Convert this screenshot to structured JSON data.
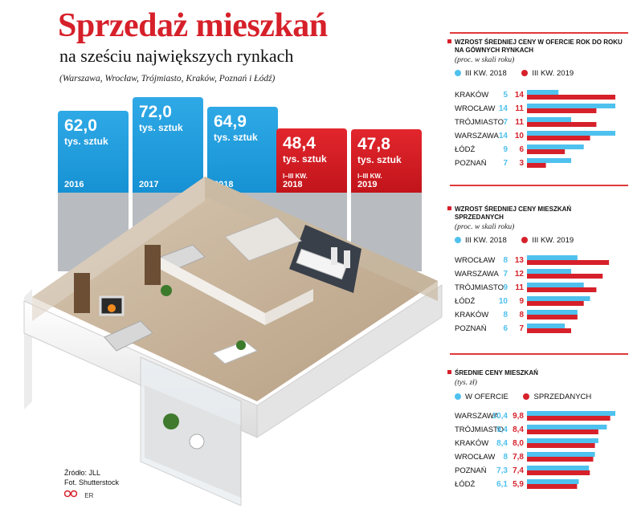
{
  "header": {
    "title": "Sprzedaż mieszkań",
    "subtitle": "na sześciu największych rynkach",
    "cities_note": "(Warszawa, Wrocław, Trójmiasto, Kraków, Poznań i Łódź)"
  },
  "footer": {
    "source": "Źródło: JLL",
    "photo": "Fot. Shutterstock",
    "logo": "ER"
  },
  "colors": {
    "blue": "#1a9ee0",
    "red": "#d6202a",
    "light_blue": "#4fc1ee",
    "gray": "#b8bcc0"
  },
  "chart_data": [
    {
      "type": "bar",
      "id": "sales",
      "categories": [
        "2016",
        "2017",
        "2018",
        "I–III KW. 2018",
        "I–III KW. 2019"
      ],
      "values": [
        62.0,
        72.0,
        64.9,
        48.4,
        47.8
      ],
      "value_labels": [
        "62,0",
        "72,0",
        "64,9",
        "48,4",
        "47,8"
      ],
      "unit": "tys. sztuk",
      "bar_colors": [
        "blue",
        "blue",
        "blue",
        "red",
        "red"
      ]
    },
    {
      "type": "bar",
      "id": "offer_growth",
      "title": "Wzrost średniej ceny w ofercie rok do roku na gównych rynkach",
      "note": "(proc. w skali roku)",
      "categories": [
        "KRAKÓW",
        "WROCŁAW",
        "TRÓJMIASTO",
        "WARSZAWA",
        "ŁÓDŹ",
        "POZNAŃ"
      ],
      "series": [
        {
          "name": "III KW. 2018",
          "color": "light_blue",
          "values": [
            5,
            14,
            7,
            14,
            9,
            7
          ],
          "labels": [
            "5",
            "14",
            "7",
            "14",
            "9",
            "7"
          ]
        },
        {
          "name": "III KW. 2019",
          "color": "red",
          "values": [
            14,
            11,
            11,
            10,
            6,
            3
          ],
          "labels": [
            "14",
            "11",
            "11",
            "10",
            "6",
            "3"
          ]
        }
      ],
      "xlim": [
        0,
        14
      ]
    },
    {
      "type": "bar",
      "id": "sold_growth",
      "title": "Wzrost średniej ceny mieszkań sprzedanych",
      "note": "(proc. w skali roku)",
      "categories": [
        "WROCŁAW",
        "WARSZAWA",
        "TRÓJMIASTO",
        "ŁÓDŹ",
        "KRAKÓW",
        "POZNAŃ"
      ],
      "series": [
        {
          "name": "III KW. 2018",
          "color": "light_blue",
          "values": [
            8,
            7,
            9,
            10,
            8,
            6
          ],
          "labels": [
            "8",
            "7",
            "9",
            "10",
            "8",
            "6"
          ]
        },
        {
          "name": "III KW. 2019",
          "color": "red",
          "values": [
            13,
            12,
            11,
            9,
            8,
            7
          ],
          "labels": [
            "13",
            "12",
            "11",
            "9",
            "8",
            "7"
          ]
        }
      ],
      "xlim": [
        0,
        14
      ]
    },
    {
      "type": "bar",
      "id": "avg_prices",
      "title": "Średnie ceny mieszkań",
      "note": "(tys. zł)",
      "categories": [
        "WARSZAWA",
        "TRÓJMIASTO",
        "KRAKÓW",
        "WROCŁAW",
        "POZNAŃ",
        "ŁÓDŹ"
      ],
      "series": [
        {
          "name": "W OFERCIE",
          "color": "light_blue",
          "values": [
            10.4,
            9.4,
            8.4,
            8,
            7.3,
            6.1
          ],
          "labels": [
            "10,4",
            "9,4",
            "8,4",
            "8",
            "7,3",
            "6,1"
          ]
        },
        {
          "name": "SPRZEDANYCH",
          "color": "red",
          "values": [
            9.8,
            8.4,
            8.0,
            7.8,
            7.4,
            5.9
          ],
          "labels": [
            "9,8",
            "8,4",
            "8,0",
            "7,8",
            "7,4",
            "5,9"
          ]
        }
      ],
      "xlim": [
        0,
        10.4
      ]
    }
  ]
}
